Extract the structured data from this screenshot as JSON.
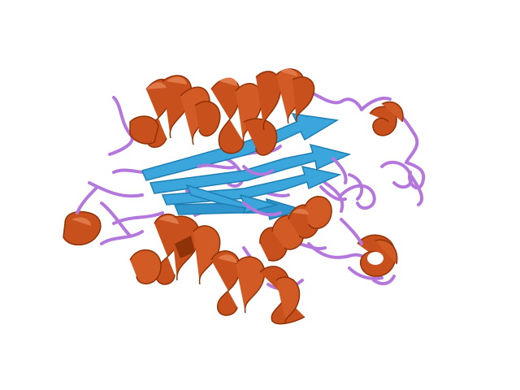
{
  "scene": {
    "subject": "protein-ribbon-structure",
    "background_color": "#ffffff",
    "colors": {
      "helix": "#c8501c",
      "helix_dark": "#8f3208",
      "helix_light": "#e07848",
      "sheet": "#3aa6dc",
      "sheet_dark": "#1f7fb3",
      "coil": "#b478dc",
      "coil_dark": "#8e55b8"
    },
    "elements": [
      {
        "kind": "helix",
        "name": "helix-top-left"
      },
      {
        "kind": "helix",
        "name": "helix-top-mid"
      },
      {
        "kind": "helix",
        "name": "helix-top-right"
      },
      {
        "kind": "helix",
        "name": "helix-right-small"
      },
      {
        "kind": "helix",
        "name": "helix-center-right"
      },
      {
        "kind": "helix",
        "name": "helix-bottom-left"
      },
      {
        "kind": "helix",
        "name": "helix-bottom-mid"
      },
      {
        "kind": "helix",
        "name": "helix-bottom-right-ring"
      },
      {
        "kind": "helix",
        "name": "helix-left-loop"
      },
      {
        "kind": "sheet",
        "name": "beta-sheet-strands"
      },
      {
        "kind": "coil",
        "name": "coil-loops"
      }
    ]
  }
}
